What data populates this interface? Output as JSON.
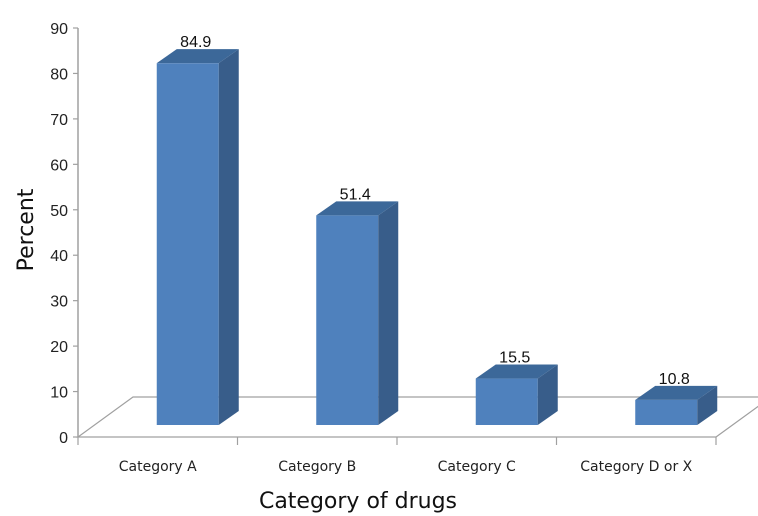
{
  "chart_data": {
    "type": "bar",
    "style": "3d-column",
    "categories": [
      "Category A",
      "Category B",
      "Category C",
      "Category D or X"
    ],
    "values": [
      84.9,
      51.4,
      15.5,
      10.8
    ],
    "data_labels": [
      "84.9",
      "51.4",
      "15.5",
      "10.8"
    ],
    "ylabel": "Percent",
    "xlabel": "Category of drugs",
    "ylim": [
      0,
      90
    ],
    "yticks": [
      0,
      10,
      20,
      30,
      40,
      50,
      60,
      70,
      80,
      90
    ],
    "ytick_labels": [
      "0",
      "10",
      "20",
      "30",
      "40",
      "50",
      "60",
      "70",
      "80",
      "90"
    ],
    "grid": false,
    "legend": "none",
    "colors": {
      "bar_front": "#4f81bd",
      "bar_side": "#385d8a",
      "bar_top": "#3c6899",
      "axis": "#a0a0a0"
    }
  }
}
